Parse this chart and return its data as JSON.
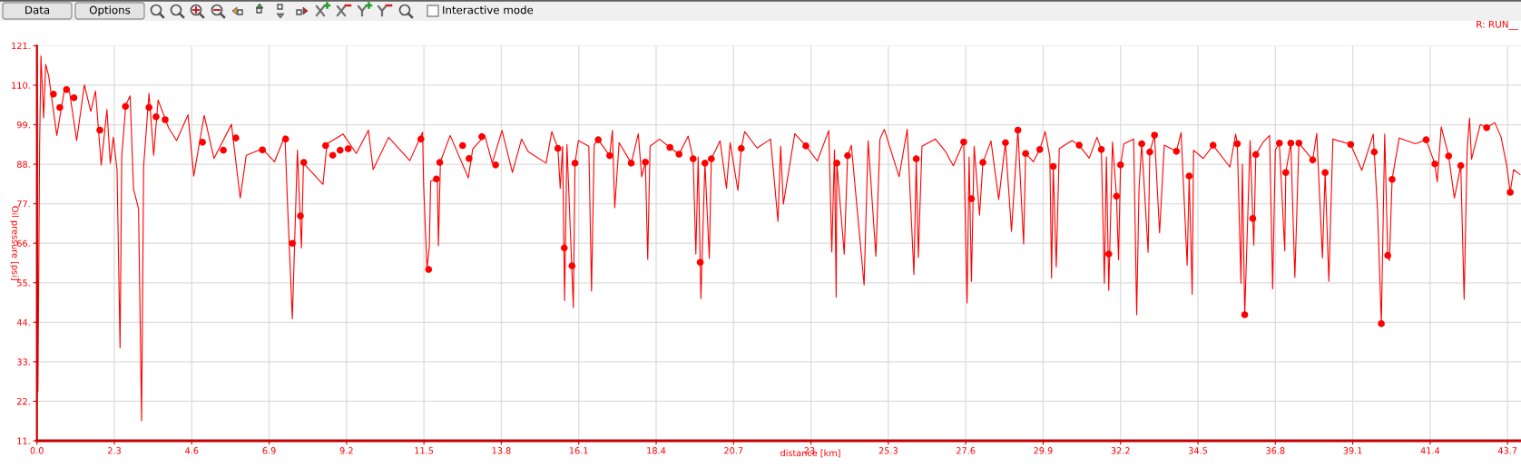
{
  "chart_data": {
    "type": "line",
    "xlabel": "distance [km]",
    "ylabel": "Oil pressure [psi]",
    "annotations": [
      "Data",
      "Options",
      "Interactive mode",
      "R: RUN__"
    ],
    "xlim": [
      0,
      44.1
    ],
    "xticks": [
      {
        "value": 0,
        "label": "0.0"
      },
      2.3,
      4.6,
      6.9,
      9.2,
      11.5,
      13.8,
      16.1,
      18.4,
      20.7,
      {
        "value": 23,
        "label": "23."
      },
      25.3,
      27.6,
      29.9,
      32.2,
      34.5,
      36.8,
      39.1,
      41.4,
      43.7
    ],
    "ylim": [
      11,
      121
    ],
    "yticks": [
      {
        "value": 11,
        "label": "11."
      },
      {
        "value": 22,
        "label": "22."
      },
      {
        "value": 33,
        "label": "33."
      },
      {
        "value": 44,
        "label": "44."
      },
      {
        "value": 55,
        "label": "55."
      },
      {
        "value": 66,
        "label": "66."
      },
      {
        "value": 77,
        "label": "77."
      },
      {
        "value": 88,
        "label": "88."
      },
      {
        "value": 99,
        "label": "99."
      },
      {
        "value": 110,
        "label": "110."
      },
      {
        "value": 121,
        "label": "121."
      }
    ],
    "grid": true,
    "series": [
      {
        "color": "#ff0000",
        "x": [
          0,
          0.03,
          0.08,
          0.12,
          0.2,
          0.26,
          0.35,
          0.59,
          0.83,
          0.97,
          1.18,
          1.41,
          1.6,
          1.74,
          1.91,
          2.08,
          2.18,
          2.27,
          2.38,
          2.47,
          2.52,
          2.64,
          2.77,
          2.87,
          3.02,
          3.11,
          3.17,
          3.33,
          3.47,
          3.6,
          3.91,
          4.15,
          4.49,
          4.66,
          4.97,
          5.26,
          5.78,
          6.04,
          6.22,
          6.7,
          7.06,
          7.37,
          7.45,
          7.59,
          7.74,
          7.86,
          7.92,
          8.5,
          8.62,
          9.1,
          9.49,
          9.85,
          9.99,
          10.45,
          11.08,
          11.46,
          11.49,
          11.59,
          11.66,
          11.7,
          11.9,
          11.93,
          11.99,
          12.28,
          12.82,
          12.95,
          13.31,
          13.53,
          13.82,
          14.13,
          14.4,
          14.6,
          15.13,
          15.3,
          15.48,
          15.55,
          15.62,
          15.68,
          15.75,
          15.94,
          15.99,
          16.09,
          16.4,
          16.48,
          16.56,
          16.68,
          17.02,
          17.1,
          17.17,
          17.3,
          17.66,
          17.87,
          17.97,
          18.08,
          18.15,
          18.22,
          18.5,
          18.81,
          19.08,
          19.35,
          19.5,
          19.58,
          19.65,
          19.73,
          19.85,
          19.98,
          20.04,
          20.3,
          20.49,
          20.6,
          20.83,
          20.93,
          21.03,
          21.4,
          21.8,
          22.02,
          22.1,
          22.18,
          22.52,
          22.85,
          23.19,
          23.53,
          23.62,
          23.7,
          23.75,
          23.77,
          23.99,
          24.09,
          24.2,
          24.58,
          24.7,
          24.93,
          25.05,
          25.18,
          25.62,
          25.86,
          26.06,
          26.13,
          26.19,
          26.3,
          26.7,
          27.0,
          27.23,
          27.54,
          27.64,
          27.7,
          27.77,
          27.85,
          28.01,
          28.11,
          28.35,
          28.58,
          28.78,
          28.96,
          29.15,
          29.32,
          29.38,
          29.61,
          29.8,
          29.96,
          30.1,
          30.15,
          30.2,
          30.29,
          30.38,
          30.76,
          30.97,
          31.27,
          31.5,
          31.63,
          31.72,
          31.78,
          31.85,
          31.96,
          32.08,
          32.14,
          32.2,
          32.3,
          32.59,
          32.68,
          32.75,
          32.83,
          33.02,
          33.07,
          33.21,
          33.36,
          33.5,
          33.86,
          34.0,
          34.18,
          34.24,
          34.33,
          34.37,
          34.66,
          34.95,
          35.45,
          35.62,
          35.67,
          35.78,
          35.82,
          35.89,
          36.05,
          36.13,
          36.16,
          36.22,
          36.44,
          36.63,
          36.72,
          36.8,
          36.92,
          37.08,
          37.11,
          37.26,
          37.38,
          37.5,
          37.91,
          38.03,
          38.2,
          38.28,
          38.39,
          38.51,
          39.04,
          39.37,
          39.71,
          39.74,
          39.84,
          39.95,
          40.05,
          40.14,
          40.19,
          40.27,
          40.48,
          40.96,
          41.28,
          41.54,
          41.61,
          41.73,
          41.95,
          42.12,
          42.31,
          42.41,
          42.5,
          42.57,
          42.63,
          42.89,
          43.08,
          43.32,
          43.51,
          43.68,
          43.78,
          43.88,
          44.07
        ],
        "values": [
          120.7,
          24.7,
          93.7,
          118.2,
          100.9,
          115.8,
          112.6,
          96.0,
          109.5,
          108.1,
          94.6,
          110.1,
          102.7,
          108.4,
          87.8,
          103.2,
          88.3,
          95.5,
          86.5,
          36.9,
          90.1,
          104.5,
          107.0,
          81.1,
          75.6,
          16.6,
          87.4,
          107.7,
          90.5,
          105.9,
          98.2,
          94.6,
          101.8,
          84.7,
          101.6,
          89.6,
          99.1,
          78.6,
          90.5,
          92.3,
          88.7,
          95.9,
          76.1,
          45.0,
          91.9,
          64.7,
          88.3,
          82.4,
          93.7,
          96.4,
          91.0,
          97.5,
          86.5,
          95.5,
          89.0,
          96.9,
          82.4,
          59.0,
          64.9,
          83.3,
          83.8,
          65.3,
          88.7,
          96.0,
          84.2,
          92.3,
          96.0,
          88.3,
          97.4,
          85.7,
          95.0,
          91.5,
          88.3,
          97.1,
          92.4,
          81.3,
          93.0,
          50.1,
          93.5,
          48.1,
          88.3,
          94.6,
          93.0,
          52.7,
          93.5,
          94.8,
          90.4,
          97.4,
          75.9,
          94.0,
          88.3,
          96.5,
          84.5,
          88.6,
          61.5,
          93.0,
          95.0,
          92.7,
          90.8,
          95.8,
          89.5,
          63.0,
          90.0,
          50.6,
          88.3,
          61.8,
          89.5,
          94.5,
          81.3,
          94.0,
          80.7,
          92.4,
          97.1,
          92.5,
          95.0,
          72.1,
          93.0,
          76.9,
          96.5,
          93.1,
          88.9,
          97.4,
          63.6,
          92.0,
          51.0,
          88.3,
          63.0,
          90.4,
          93.3,
          54.4,
          94.5,
          62.4,
          95.0,
          97.7,
          84.5,
          97.7,
          57.3,
          89.5,
          62.0,
          93.0,
          95.0,
          91.5,
          87.6,
          94.2,
          49.4,
          90.0,
          55.4,
          93.0,
          73.8,
          88.5,
          94.5,
          78.2,
          94.0,
          69.3,
          97.5,
          65.8,
          91.0,
          88.7,
          92.1,
          97.1,
          90.0,
          56.3,
          87.4,
          59.4,
          92.4,
          94.6,
          93.3,
          89.7,
          95.5,
          92.1,
          54.9,
          90.0,
          52.9,
          94.2,
          79.1,
          61.4,
          87.8,
          93.7,
          95.0,
          46.1,
          81.5,
          93.7,
          63.5,
          91.4,
          96.1,
          68.9,
          93.3,
          91.6,
          96.8,
          59.9,
          84.7,
          51.8,
          91.9,
          89.6,
          93.3,
          87.2,
          96.4,
          93.7,
          54.9,
          88.0,
          46.1,
          94.6,
          72.9,
          65.5,
          90.7,
          94.2,
          96.0,
          53.3,
          92.0,
          93.9,
          63.9,
          85.7,
          93.9,
          56.5,
          93.9,
          89.2,
          96.6,
          61.9,
          85.7,
          55.4,
          95.0,
          93.5,
          86.3,
          96.4,
          91.4,
          74.7,
          43.6,
          96.4,
          62.6,
          61.2,
          83.8,
          95.3,
          93.7,
          94.8,
          88.1,
          83.1,
          98.4,
          90.3,
          78.6,
          87.6,
          50.4,
          92.0,
          100.9,
          89.4,
          99.1,
          98.2,
          99.6,
          95.5,
          87.4,
          80.2,
          86.5,
          85.1
        ]
      },
      {
        "type": "scatter",
        "color": "#ff0000",
        "marker": "circle",
        "x": [
          0.49,
          0.68,
          0.88,
          1.1,
          1.87,
          2.63,
          3.33,
          3.54,
          3.81,
          4.92,
          5.54,
          5.91,
          6.7,
          7.39,
          7.59,
          7.83,
          7.93,
          8.58,
          8.79,
          9.01,
          9.25,
          11.41,
          11.64,
          11.87,
          11.97,
          12.65,
          12.84,
          13.22,
          13.63,
          15.48,
          15.67,
          15.9,
          15.99,
          16.68,
          17.02,
          17.66,
          18.08,
          18.81,
          19.08,
          19.5,
          19.71,
          19.85,
          20.04,
          20.93,
          22.85,
          23.77,
          24.09,
          26.13,
          27.54,
          27.77,
          28.11,
          28.78,
          29.15,
          29.38,
          29.8,
          30.2,
          30.97,
          31.63,
          31.85,
          32.08,
          32.2,
          32.83,
          33.07,
          33.21,
          33.86,
          34.24,
          34.95,
          35.67,
          35.89,
          36.13,
          36.22,
          36.92,
          37.11,
          37.26,
          37.5,
          37.91,
          38.28,
          39.04,
          39.74,
          39.95,
          40.14,
          40.27,
          41.28,
          41.54,
          41.95,
          42.31,
          43.08,
          43.78
        ],
        "values": [
          107.5,
          103.8,
          108.8,
          106.5,
          97.5,
          104.1,
          103.8,
          101.2,
          100.4,
          94.1,
          91.9,
          95.3,
          92.0,
          95.0,
          66.0,
          73.6,
          88.5,
          93.2,
          90.5,
          91.9,
          92.3,
          95.0,
          58.7,
          83.9,
          88.5,
          93.2,
          89.6,
          95.7,
          87.8,
          92.4,
          64.7,
          59.7,
          88.3,
          94.8,
          90.4,
          88.3,
          88.6,
          92.7,
          90.8,
          89.5,
          60.7,
          88.3,
          89.5,
          92.4,
          93.1,
          88.3,
          90.4,
          89.5,
          94.2,
          78.4,
          88.5,
          94.0,
          97.5,
          91.0,
          92.1,
          87.4,
          93.3,
          92.1,
          63.0,
          79.1,
          87.8,
          93.7,
          91.4,
          96.1,
          91.6,
          84.7,
          93.3,
          93.7,
          46.1,
          72.9,
          90.7,
          93.9,
          85.7,
          93.9,
          93.9,
          89.2,
          85.7,
          93.5,
          91.4,
          43.6,
          62.6,
          83.8,
          94.8,
          88.1,
          90.3,
          87.6,
          98.2,
          80.2
        ]
      }
    ]
  }
}
